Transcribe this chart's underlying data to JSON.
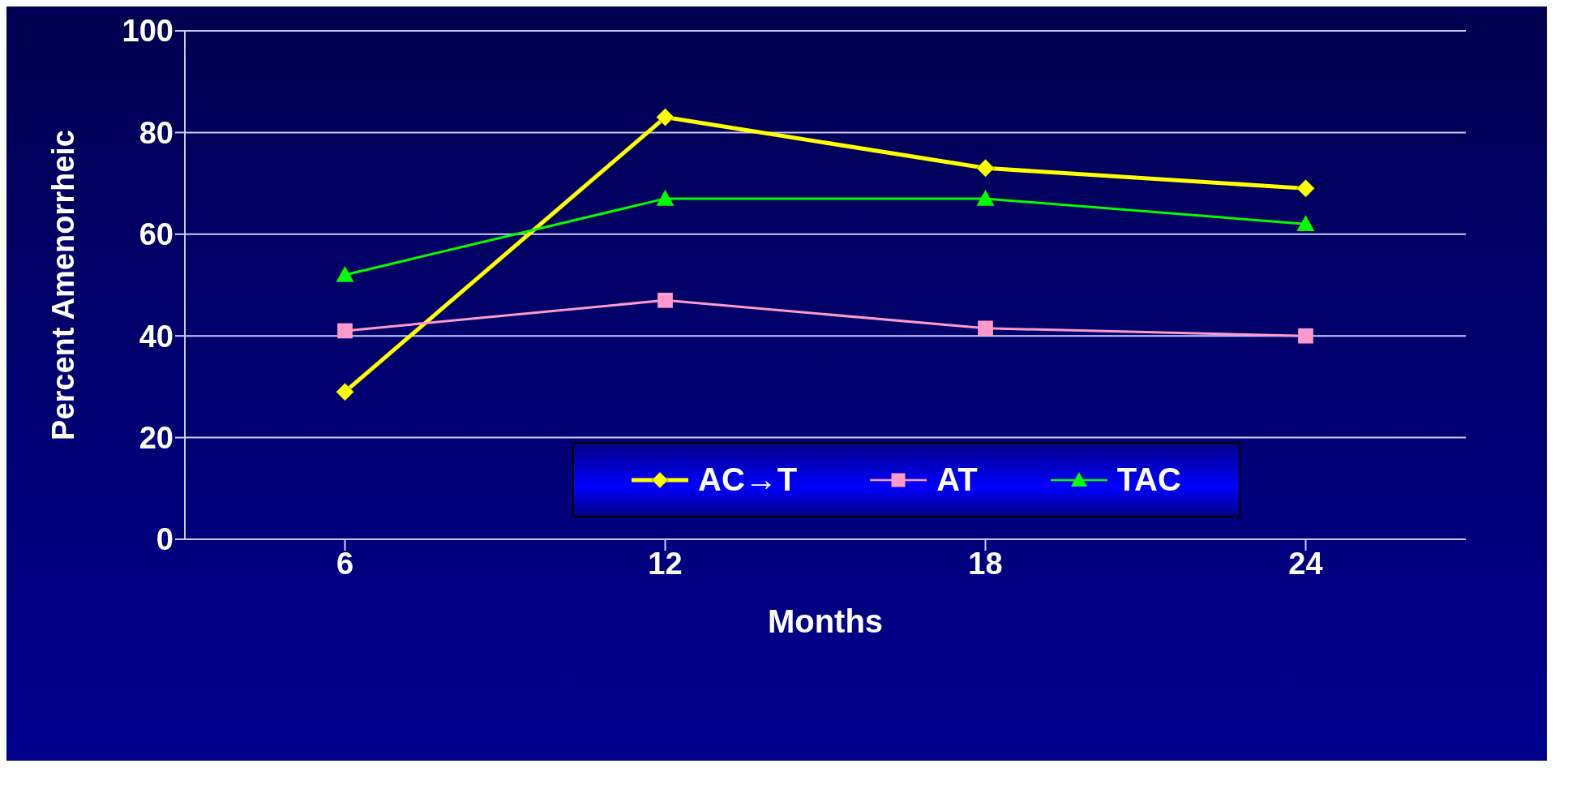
{
  "chart_data": {
    "type": "line",
    "xlabel": "Months",
    "ylabel": "Percent Amenorrheic",
    "categories": [
      "6",
      "12",
      "18",
      "24"
    ],
    "series": [
      {
        "name": "AC→T",
        "color": "#ffff00",
        "values": [
          29,
          83,
          73,
          69
        ],
        "marker": "diamond"
      },
      {
        "name": "AT",
        "color": "#ff99cc",
        "values": [
          41,
          47,
          41.5,
          40
        ],
        "marker": "square"
      },
      {
        "name": "TAC",
        "color": "#00ff00",
        "values": [
          52,
          67,
          67,
          62
        ],
        "marker": "triangle"
      }
    ],
    "ylim": [
      0,
      100
    ],
    "yticks": [
      0,
      20,
      40,
      60,
      80,
      100
    ],
    "grid": "y",
    "legend": "bottom"
  }
}
